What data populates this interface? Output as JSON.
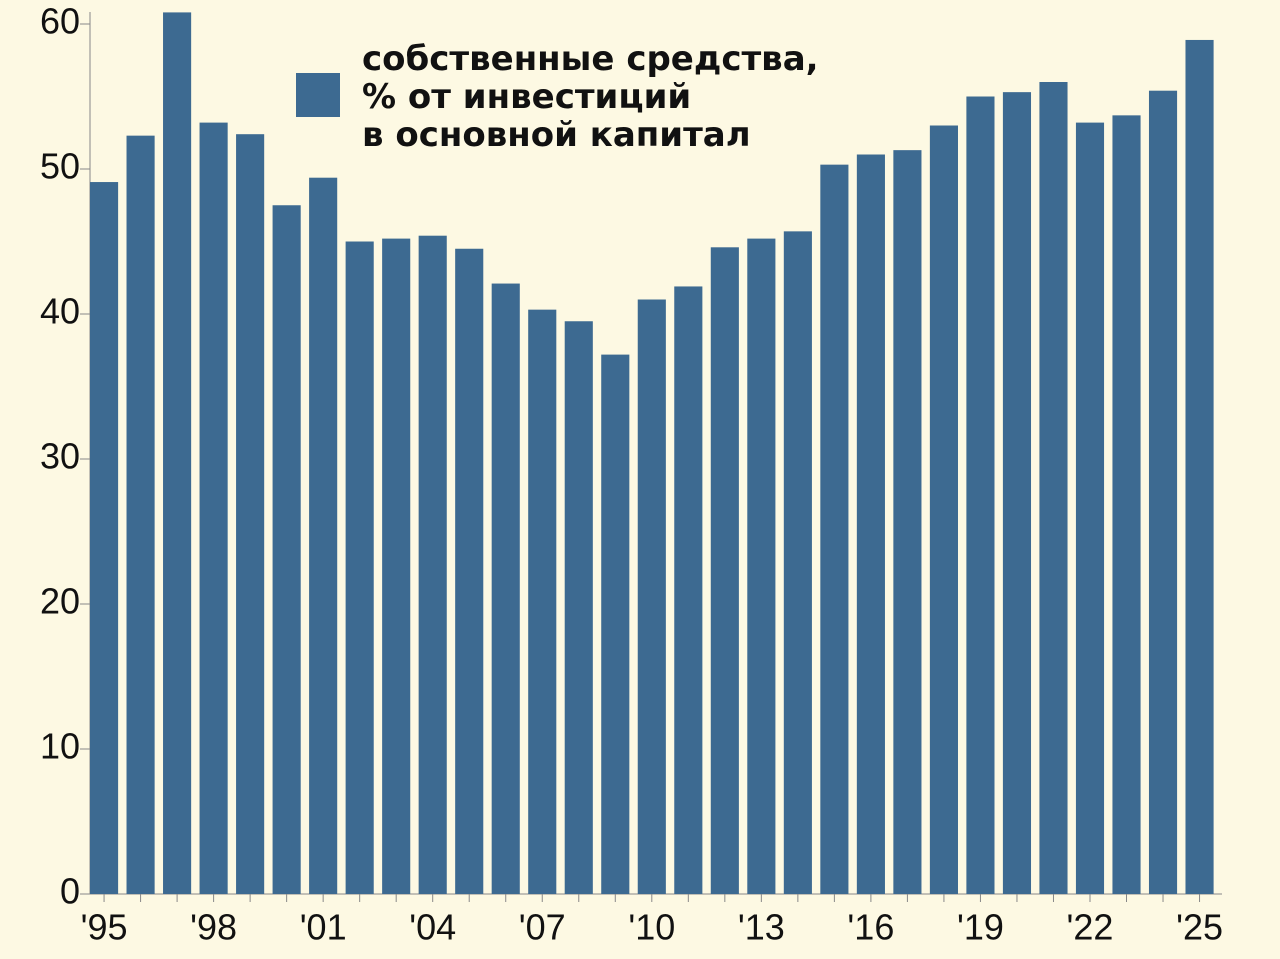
{
  "chart_data": {
    "type": "bar",
    "categories": [
      "'95",
      null,
      null,
      "'98",
      null,
      null,
      "'01",
      null,
      null,
      "'04",
      null,
      null,
      "'07",
      null,
      null,
      "'10",
      null,
      null,
      "'13",
      null,
      null,
      "'16",
      null,
      null,
      "'19",
      null,
      null,
      "'22",
      null,
      null,
      "'25"
    ],
    "series": [
      {
        "name": "собственные средства,\n% от инвестиций\nв основной капитал",
        "color": "#3d6a91",
        "values": [
          49.1,
          52.3,
          60.8,
          53.2,
          52.4,
          47.5,
          49.4,
          45.0,
          45.2,
          45.4,
          44.5,
          42.1,
          40.3,
          39.5,
          37.2,
          41.0,
          41.9,
          44.6,
          45.2,
          45.7,
          50.3,
          51.0,
          51.3,
          53.0,
          55.0,
          55.3,
          56.0,
          53.2,
          53.7,
          55.4,
          58.9
        ]
      }
    ],
    "ylim": [
      0,
      60
    ],
    "yticks": [
      0,
      10,
      20,
      30,
      40,
      50,
      60
    ],
    "grid": false,
    "legend": "top"
  }
}
